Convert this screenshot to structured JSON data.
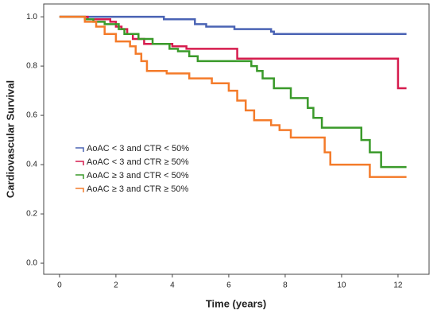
{
  "chart_data": {
    "type": "step",
    "xlabel": "Time (years)",
    "ylabel": "Cardiovascular Survival",
    "xlim": [
      -0.56,
      13.1
    ],
    "ylim": [
      -0.045,
      1.052
    ],
    "xticks": [
      0,
      2,
      4,
      6,
      8,
      10,
      12
    ],
    "yticks": [
      {
        "value": 0,
        "label": "0.0"
      },
      0.2,
      0.4,
      0.6,
      0.8,
      {
        "value": 1,
        "label": "1.0"
      }
    ],
    "legend": "center left",
    "series": [
      {
        "name": "AoAC < 3 and CTR < 50%",
        "color": "#4a63b4",
        "x": [
          0,
          3.7,
          4.8,
          5.2,
          6.2,
          7.5,
          7.6,
          12.3
        ],
        "values": [
          1.0,
          0.99,
          0.97,
          0.96,
          0.95,
          0.94,
          0.93,
          0.93
        ]
      },
      {
        "name": "AoAC < 3 and CTR ≥ 50%",
        "color": "#d61c4e",
        "x": [
          0,
          1.0,
          1.8,
          2.0,
          2.2,
          2.4,
          2.6,
          3.0,
          4.0,
          4.5,
          6.3,
          12.0,
          12.3
        ],
        "values": [
          1.0,
          0.99,
          0.98,
          0.96,
          0.95,
          0.93,
          0.91,
          0.89,
          0.88,
          0.87,
          0.83,
          0.71,
          0.71
        ]
      },
      {
        "name": "AoAC ≥ 3 and CTR < 50%",
        "color": "#3a9a2a",
        "x": [
          0,
          0.9,
          1.2,
          1.6,
          2.1,
          2.3,
          2.8,
          3.3,
          3.9,
          4.2,
          4.6,
          4.9,
          6.8,
          7.0,
          7.2,
          7.6,
          8.2,
          8.8,
          9.0,
          9.3,
          10.7,
          11.0,
          11.4,
          12.3
        ],
        "values": [
          1.0,
          0.99,
          0.98,
          0.97,
          0.95,
          0.93,
          0.91,
          0.89,
          0.87,
          0.86,
          0.84,
          0.82,
          0.8,
          0.78,
          0.75,
          0.71,
          0.67,
          0.63,
          0.59,
          0.55,
          0.5,
          0.45,
          0.39,
          0.39
        ]
      },
      {
        "name": "AoAC ≥ 3 and CTR ≥ 50%",
        "color": "#f47b2a",
        "x": [
          0,
          0.9,
          1.3,
          1.6,
          2.0,
          2.5,
          2.7,
          2.9,
          3.1,
          3.8,
          4.6,
          5.4,
          6.0,
          6.3,
          6.6,
          6.9,
          7.5,
          7.8,
          8.2,
          9.4,
          9.6,
          11.0,
          12.3
        ],
        "values": [
          1.0,
          0.98,
          0.96,
          0.93,
          0.9,
          0.88,
          0.85,
          0.82,
          0.78,
          0.77,
          0.75,
          0.73,
          0.7,
          0.66,
          0.62,
          0.58,
          0.56,
          0.54,
          0.51,
          0.45,
          0.4,
          0.35,
          0.35
        ]
      }
    ]
  }
}
